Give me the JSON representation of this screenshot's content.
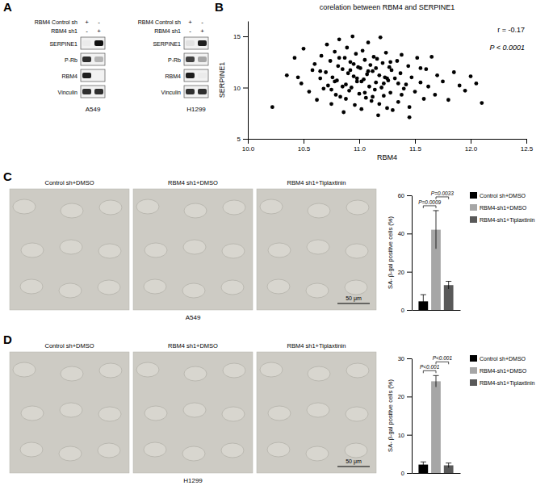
{
  "chart_data": [
    {
      "type": "blot",
      "label": "A",
      "conditions": [
        {
          "label": "RBM4 Control sh",
          "lanes": [
            "+",
            "-"
          ]
        },
        {
          "label": "RBM4 sh1",
          "lanes": [
            "-",
            "+"
          ]
        }
      ],
      "blots": [
        {
          "cell_line": "A549",
          "proteins": [
            "SERPINE1",
            "P-Rb",
            "RBM4",
            "Vinculin"
          ],
          "intensity": [
            [
              0.15,
              0.95
            ],
            [
              0.85,
              0.4
            ],
            [
              0.9,
              0.1
            ],
            [
              0.85,
              0.85
            ]
          ]
        },
        {
          "cell_line": "H1299",
          "proteins": [
            "SERPINE1",
            "P-Rb",
            "RBM4",
            "Vinculin"
          ],
          "intensity": [
            [
              0.2,
              0.9
            ],
            [
              0.8,
              0.45
            ],
            [
              0.9,
              0.15
            ],
            [
              0.85,
              0.85
            ]
          ]
        }
      ]
    },
    {
      "type": "scatter",
      "label": "B",
      "title": "corelation between RBM4 and SERPINE1",
      "x_label": "RBM4",
      "y_label": "SERPINE1",
      "color": "#000000",
      "annotations": [
        "r = -0.17",
        "P < 0.0001"
      ],
      "xlim": [
        10,
        12.5
      ],
      "xticks": [
        {
          "value": 10,
          "label": "10.0"
        },
        {
          "value": 10.5,
          "label": "10.5"
        },
        {
          "value": 11,
          "label": "11.0"
        },
        {
          "value": 11.5,
          "label": "11.5"
        },
        {
          "value": 12,
          "label": "12.0"
        },
        {
          "value": 12.5,
          "label": "12.5"
        }
      ],
      "ylim": [
        5,
        16.5
      ],
      "yticks": [
        5,
        10,
        15
      ],
      "x": [
        10.22,
        10.35,
        10.42,
        10.48,
        10.5,
        10.55,
        10.58,
        10.6,
        10.62,
        10.65,
        10.66,
        10.68,
        10.7,
        10.71,
        10.72,
        10.74,
        10.75,
        10.76,
        10.78,
        10.79,
        10.8,
        10.81,
        10.82,
        10.83,
        10.85,
        10.86,
        10.87,
        10.88,
        10.89,
        10.9,
        10.91,
        10.92,
        10.93,
        10.94,
        10.95,
        10.96,
        10.97,
        10.98,
        10.99,
        11.0,
        11.01,
        11.02,
        11.03,
        11.04,
        11.05,
        11.06,
        11.07,
        11.08,
        11.09,
        11.1,
        11.11,
        11.12,
        11.13,
        11.14,
        11.15,
        11.16,
        11.17,
        11.18,
        11.19,
        11.2,
        11.21,
        11.22,
        11.23,
        11.24,
        11.25,
        11.26,
        11.27,
        11.28,
        11.29,
        11.3,
        11.32,
        11.34,
        11.35,
        11.37,
        11.38,
        11.4,
        11.42,
        11.44,
        11.45,
        11.47,
        11.5,
        11.52,
        11.55,
        11.58,
        11.6,
        11.62,
        11.65,
        11.68,
        11.7,
        11.75,
        11.8,
        11.85,
        11.9,
        11.95,
        12.0,
        12.05,
        12.1,
        10.95,
        11.05,
        10.85,
        11.15,
        11.25,
        10.75,
        11.35,
        10.65,
        11.45,
        10.88,
        11.12,
        11.02,
        10.92,
        11.22,
        10.98,
        11.08,
        11.18,
        10.82,
        11.28,
        11.38,
        10.78,
        11.55,
        10.45
      ],
      "values": [
        8.1,
        11.2,
        12.9,
        10.4,
        13.8,
        9.6,
        11.7,
        12.3,
        8.8,
        10.9,
        13.1,
        9.9,
        11.5,
        14.2,
        10.2,
        12.6,
        8.4,
        11.0,
        13.5,
        9.3,
        10.7,
        12.1,
        14.7,
        9.1,
        11.8,
        7.6,
        12.9,
        10.3,
        13.9,
        11.4,
        9.7,
        12.5,
        10.0,
        15.0,
        11.1,
        8.3,
        13.3,
        10.6,
        12.0,
        9.4,
        11.9,
        7.9,
        13.6,
        10.8,
        12.7,
        9.0,
        11.3,
        14.4,
        10.1,
        12.2,
        8.7,
        11.6,
        13.0,
        9.8,
        10.5,
        12.8,
        7.3,
        11.2,
        14.9,
        10.0,
        12.4,
        9.2,
        11.0,
        13.4,
        8.0,
        10.7,
        12.0,
        9.5,
        11.7,
        7.8,
        10.9,
        12.6,
        8.6,
        11.4,
        13.2,
        9.9,
        10.3,
        12.1,
        7.1,
        11.0,
        9.6,
        12.9,
        10.5,
        8.9,
        11.8,
        10.1,
        13.0,
        9.3,
        11.2,
        10.6,
        8.8,
        11.5,
        10.2,
        9.7,
        11.1,
        10.4,
        8.5,
        12.3,
        9.5,
        10.1,
        11.9,
        10.9,
        9.8,
        10.4,
        11.6,
        8.1,
        8.9,
        9.1,
        10.6,
        11.7,
        10.4,
        10.9,
        11.6,
        8.4,
        12.9,
        12.5,
        9.3,
        10.6,
        11.9,
        11.0
      ]
    },
    {
      "type": "bar",
      "label": "C",
      "images": {
        "cell_line": "A549",
        "captions": [
          "Control sh+DMSO",
          "RBM4 sh1+DMSO",
          "RBM4 sh1+Tiplaxtinin"
        ],
        "scale_bar": "50 μm"
      },
      "y_label": "SA- β-gal positive cells (%)",
      "tick_labels": "y",
      "categories": [
        null
      ],
      "ylim": [
        0,
        60
      ],
      "yticks": [
        0,
        20,
        40,
        60
      ],
      "series": [
        {
          "name": "Control sh+DMSO",
          "color": "#000000",
          "values": [
            4.5
          ],
          "errors": [
            3.5
          ]
        },
        {
          "name": "RBM4-sh1+DMSO",
          "color": "#a6a6a6",
          "values": [
            42
          ],
          "errors": [
            10
          ]
        },
        {
          "name": "RBM4-sh1+Tiplaxtinin",
          "color": "#595959",
          "values": [
            13
          ],
          "errors": [
            2
          ]
        }
      ],
      "comparisons": [
        {
          "label": "P=0.0009",
          "pair": [
            0,
            1
          ]
        },
        {
          "label": "P=0.0033",
          "pair": [
            1,
            2
          ]
        }
      ]
    },
    {
      "type": "bar",
      "label": "D",
      "images": {
        "cell_line": "H1299",
        "captions": [
          "Control sh+DMSO",
          "RBM4 sh1+DMSO",
          "RBM4 sh1+Tiplaxtinin"
        ],
        "scale_bar": "50 μm"
      },
      "y_label": "SA- β-gal positive cells (%)",
      "tick_labels": "y",
      "categories": [
        null
      ],
      "ylim": [
        0,
        30
      ],
      "yticks": [
        0,
        10,
        20,
        30
      ],
      "series": [
        {
          "name": "Control sh+DMSO",
          "color": "#000000",
          "values": [
            2.2
          ],
          "errors": [
            0.7
          ]
        },
        {
          "name": "RBM4-sh1+DMSO",
          "color": "#a6a6a6",
          "values": [
            24
          ],
          "errors": [
            1.5
          ]
        },
        {
          "name": "RBM4-sh1+Tiplaxtinin",
          "color": "#595959",
          "values": [
            2
          ],
          "errors": [
            0.6
          ]
        }
      ],
      "comparisons": [
        {
          "label": "P<0.001",
          "pair": [
            0,
            1
          ]
        },
        {
          "label": "P<0.001",
          "pair": [
            1,
            2
          ]
        }
      ]
    }
  ]
}
